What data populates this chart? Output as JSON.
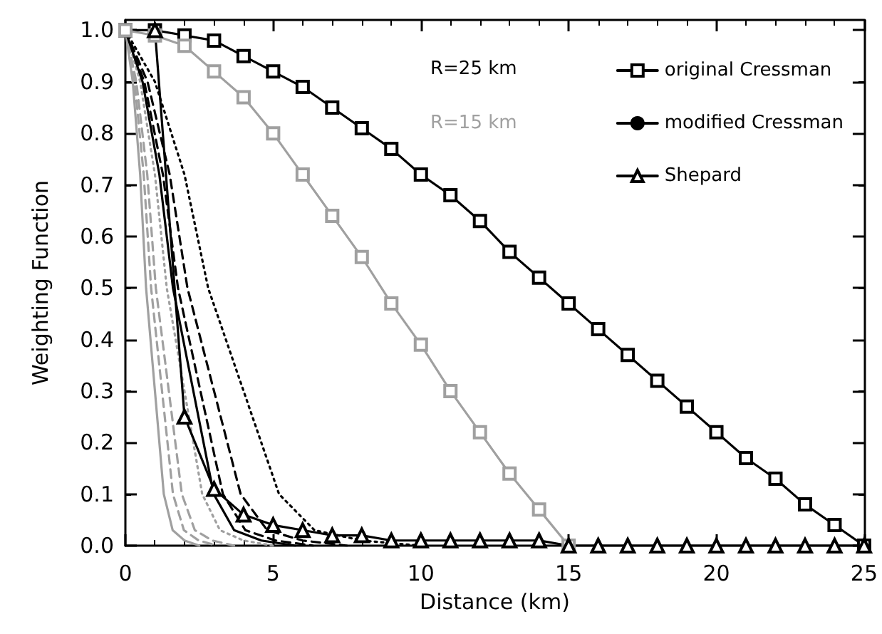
{
  "chart_data": {
    "type": "line",
    "xlabel": "Distance (km)",
    "ylabel": "Weighting Function",
    "xlim": [
      0,
      25
    ],
    "xticks": [
      0,
      5,
      10,
      15,
      20,
      25
    ],
    "ylim": [
      0,
      1.02
    ],
    "yticks": [
      {
        "value": 0,
        "label": "0.0"
      },
      {
        "value": 0.1,
        "label": "0.1"
      },
      {
        "value": 0.2,
        "label": "0.2"
      },
      {
        "value": 0.3,
        "label": "0.3"
      },
      {
        "value": 0.4,
        "label": "0.4"
      },
      {
        "value": 0.5,
        "label": "0.5"
      },
      {
        "value": 0.6,
        "label": "0.6"
      },
      {
        "value": 0.7,
        "label": "0.7"
      },
      {
        "value": 0.8,
        "label": "0.8"
      },
      {
        "value": 0.9,
        "label": "0.9"
      },
      {
        "value": 1,
        "label": "1.0"
      }
    ],
    "grid": false,
    "legend": "top right",
    "annotations": [
      "R=25 km",
      "R=15 km"
    ],
    "series": [
      {
        "name": "original Cressman",
        "color": "#000000",
        "marker": "square",
        "line_style": "solid",
        "x": [
          0,
          1,
          2,
          3,
          4,
          5,
          6,
          7,
          8,
          9,
          10,
          11,
          12,
          13,
          14,
          15,
          16,
          17,
          18,
          19,
          20,
          21,
          22,
          23,
          24,
          25
        ],
        "values": [
          1,
          1,
          0.99,
          0.98,
          0.95,
          0.92,
          0.89,
          0.85,
          0.81,
          0.77,
          0.72,
          0.68,
          0.63,
          0.57,
          0.52,
          0.47,
          0.42,
          0.37,
          0.32,
          0.27,
          0.22,
          0.17,
          0.13,
          0.08,
          0.04,
          0
        ]
      },
      {
        "color": "#a0a0a0",
        "marker": "square",
        "line_style": "solid",
        "x": [
          0,
          1,
          2,
          3,
          4,
          5,
          6,
          7,
          8,
          9,
          10,
          11,
          12,
          13,
          14,
          15
        ],
        "values": [
          1,
          0.99,
          0.97,
          0.92,
          0.87,
          0.8,
          0.72,
          0.64,
          0.56,
          0.47,
          0.39,
          0.3,
          0.22,
          0.14,
          0.07,
          0
        ]
      },
      {
        "color": "#a0a0a0",
        "marker": "none",
        "line_style": "solid",
        "x": [
          0,
          0.25,
          0.5,
          0.7,
          1,
          1.3,
          1.6,
          2,
          2.5
        ],
        "values": [
          1,
          0.9,
          0.72,
          0.5,
          0.3,
          0.1,
          0.03,
          0.01,
          0
        ]
      },
      {
        "color": "#a0a0a0",
        "marker": "none",
        "line_style": "dashed",
        "x": [
          0,
          0.31,
          0.62,
          0.87,
          1.24,
          1.61,
          1.98,
          2.48,
          3.1
        ],
        "values": [
          1,
          0.9,
          0.72,
          0.5,
          0.3,
          0.1,
          0.03,
          0.01,
          0
        ]
      },
      {
        "color": "#a0a0a0",
        "marker": "none",
        "line_style": "dashed",
        "x": [
          0,
          0.37,
          0.74,
          1.03,
          1.47,
          1.91,
          2.35,
          2.94,
          3.68
        ],
        "values": [
          1,
          0.9,
          0.72,
          0.5,
          0.3,
          0.1,
          0.03,
          0.01,
          0
        ]
      },
      {
        "color": "#a0a0a0",
        "marker": "none",
        "line_style": "dotted",
        "x": [
          0,
          0.5,
          1,
          1.4,
          2,
          2.6,
          3.2,
          4,
          5
        ],
        "values": [
          1,
          0.9,
          0.72,
          0.5,
          0.3,
          0.1,
          0.03,
          0.01,
          0
        ]
      },
      {
        "name": "modified Cressman",
        "color": "#000000",
        "marker": "none",
        "line_style": "solid",
        "x": [
          0,
          0.58,
          1.15,
          1.61,
          2.3,
          2.99,
          3.68,
          4.6,
          5.75
        ],
        "values": [
          1,
          0.9,
          0.72,
          0.5,
          0.3,
          0.1,
          0.03,
          0.01,
          0
        ]
      },
      {
        "color": "#000000",
        "marker": "none",
        "line_style": "dashed",
        "x": [
          0,
          0.64,
          1.27,
          1.78,
          2.54,
          3.3,
          4.06,
          5.08,
          6.35
        ],
        "values": [
          1,
          0.9,
          0.72,
          0.5,
          0.3,
          0.1,
          0.03,
          0.01,
          0
        ]
      },
      {
        "color": "#000000",
        "marker": "none",
        "line_style": "dashed",
        "x": [
          0,
          0.75,
          1.5,
          2.1,
          3,
          3.9,
          4.8,
          6,
          7.5
        ],
        "values": [
          1,
          0.9,
          0.72,
          0.5,
          0.3,
          0.1,
          0.03,
          0.01,
          0
        ]
      },
      {
        "color": "#000000",
        "marker": "none",
        "line_style": "dotted",
        "x": [
          0,
          1,
          2,
          2.8,
          4,
          5.2,
          6.4,
          8,
          10
        ],
        "values": [
          1,
          0.9,
          0.72,
          0.5,
          0.3,
          0.1,
          0.03,
          0.01,
          0
        ]
      },
      {
        "name": "Shepard",
        "color": "#000000",
        "marker": "triangle",
        "line_style": "solid",
        "x": [
          1,
          2,
          3,
          4,
          5,
          6,
          7,
          8,
          9,
          10,
          11,
          12,
          13,
          14,
          15,
          16,
          17,
          18,
          19,
          20,
          21,
          22,
          23,
          24,
          25
        ],
        "values": [
          1,
          0.25,
          0.11,
          0.06,
          0.04,
          0.03,
          0.02,
          0.02,
          0.01,
          0.01,
          0.01,
          0.01,
          0.01,
          0.01,
          0,
          0,
          0,
          0,
          0,
          0,
          0,
          0,
          0,
          0,
          0
        ]
      }
    ]
  }
}
